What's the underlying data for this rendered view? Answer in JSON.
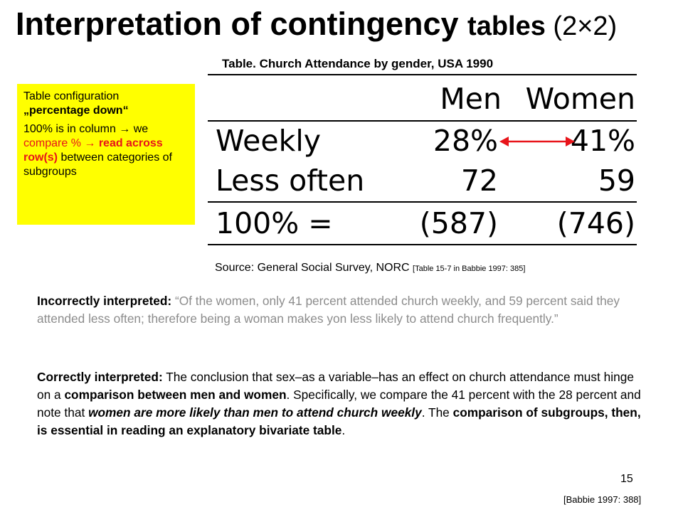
{
  "title": {
    "part1": "Interpretation of contingency ",
    "part2": "tables",
    "part3": " (2×2)"
  },
  "table": {
    "caption": "Table. Church Attendance by gender, USA 1990",
    "headers": [
      "Men",
      "Women"
    ],
    "rows": [
      {
        "label": "Weekly",
        "values": [
          "28%",
          "41%"
        ]
      },
      {
        "label": "Less often",
        "values": [
          "72",
          "59"
        ]
      }
    ],
    "total": {
      "label": "100% =",
      "values": [
        "(587)",
        "(746)"
      ]
    },
    "arrow_color": "#e8141a"
  },
  "note": {
    "line1": "Table configuration",
    "line2": "„percentage down“",
    "p2_a": "100% is in column → we ",
    "p2_b": "compare % → ",
    "p2_c": "read across row(s)",
    "p2_d": " between categories of subgroups"
  },
  "source": {
    "text": "Source:  General Social Survey, NORC  ",
    "ref": "[Table 15-7 in Babbie 1997: 385]"
  },
  "incorrect": {
    "label": "Incorrectly interpreted:",
    "quote": " “Of the women, only 41 percent attended church weekly, and 59 percent said they attended less often; therefore being a woman makes yon less likely to attend church frequently.”"
  },
  "correct": {
    "label": "Correctly interpreted:",
    "t1": " The conclusion that sex–as a variable–has an effect on church attendance must hinge on a ",
    "b1": "comparison between men and women",
    "t2": ". Specifically, we compare the 41 percent with the 28 percent and note that ",
    "bi": "women are more likely than men to attend church weekly",
    "t3": ". The ",
    "b2": "comparison of subgroups, then, is essential in reading an explanatory bivariate table",
    "t4": "."
  },
  "page_number": "15",
  "citation": "[Babbie 1997: 388]"
}
